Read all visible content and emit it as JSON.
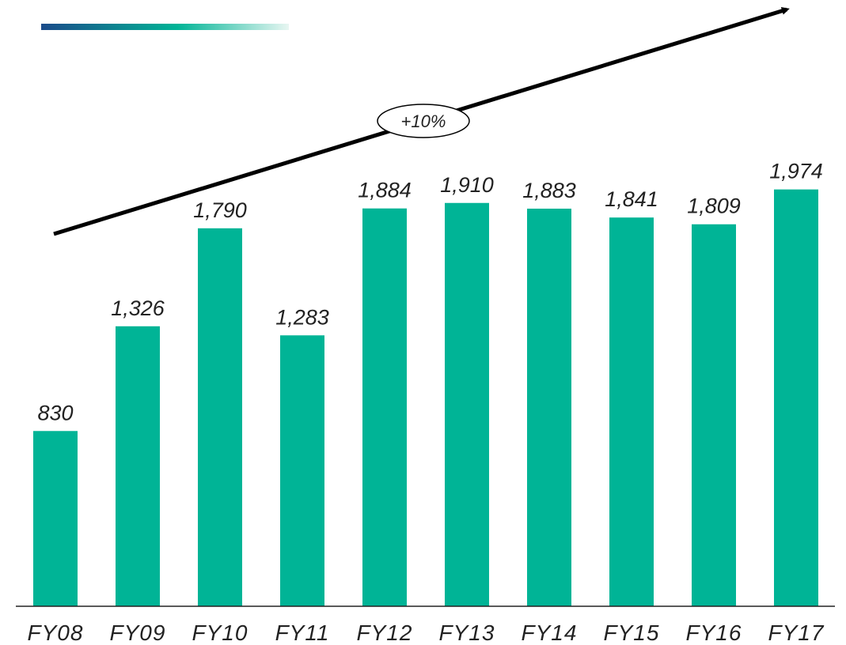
{
  "chart_data": {
    "type": "bar",
    "categories": [
      "FY08",
      "FY09",
      "FY10",
      "FY11",
      "FY12",
      "FY13",
      "FY14",
      "FY15",
      "FY16",
      "FY17"
    ],
    "values": [
      830,
      1326,
      1790,
      1283,
      1884,
      1910,
      1883,
      1841,
      1809,
      1974
    ],
    "value_labels": [
      "830",
      "1,326",
      "1,790",
      "1,283",
      "1,884",
      "1,910",
      "1,883",
      "1,841",
      "1,809",
      "1,974"
    ],
    "title": "",
    "xlabel": "",
    "ylabel": "",
    "ylim": [
      0,
      2100
    ],
    "grid": false,
    "bar_color": "#00b496",
    "annotation": {
      "text": "+10%",
      "shape": "upward-arrow"
    }
  },
  "colors": {
    "bar": "#00b496",
    "accent_gradient_start": "#1b4b8a",
    "accent_gradient_end": "#e8f6f2",
    "arrow": "#000000"
  }
}
